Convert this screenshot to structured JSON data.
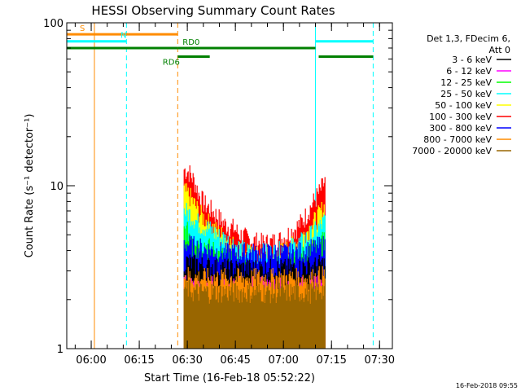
{
  "chart_data": {
    "type": "line",
    "title": "HESSI Observing Summary Count Rates",
    "xlabel": "Start Time (16-Feb-18 05:52:22)",
    "ylabel": "Count Rate (s⁻¹ detector⁻¹)",
    "y_scale": "log",
    "ylim": [
      1,
      100
    ],
    "xlim": [
      "05:52:22",
      "07:34:00"
    ],
    "x_ticks": [
      "06:00",
      "06:15",
      "06:30",
      "06:45",
      "07:00",
      "07:15",
      "07:30"
    ],
    "y_ticks": [
      "1",
      "10",
      "100"
    ],
    "timestamp": "16-Feb-2018 09:55",
    "legend": {
      "placement": "right",
      "header_line1": "Det 1,3, FDecim 6,",
      "header_line2": "Att 0",
      "entries": [
        {
          "label": "3 - 6 keV",
          "color": "#000000"
        },
        {
          "label": "6 - 12 keV",
          "color": "#ff00ff"
        },
        {
          "label": "12 - 25 keV",
          "color": "#00ff00"
        },
        {
          "label": "25 - 50 keV",
          "color": "#00ffff"
        },
        {
          "label": "50 - 100 keV",
          "color": "#ffff00"
        },
        {
          "label": "100 - 300 keV",
          "color": "#ff0000"
        },
        {
          "label": "300 - 800 keV",
          "color": "#0000ff"
        },
        {
          "label": "800 - 7000 keV",
          "color": "#ff8c00"
        },
        {
          "label": "7000 - 20000 keV",
          "color": "#996600"
        }
      ]
    },
    "flag_bars": [
      {
        "label": "S",
        "color": "#ff8c00",
        "start": "05:52:22",
        "end": "06:27",
        "level": 85
      },
      {
        "label": "N",
        "color": "#00ffff",
        "start": "05:52:22",
        "end": "06:11",
        "level": 77
      },
      {
        "label": "",
        "color": "#00ffff",
        "start": "07:10",
        "end": "07:28",
        "level": 77
      },
      {
        "label": "RD0",
        "color": "#008000",
        "start": "06:27",
        "end": "07:10",
        "level": 70
      },
      {
        "label": "",
        "color": "#008000",
        "start": "05:52:22",
        "end": "06:27",
        "level": 70
      },
      {
        "label": "RD6",
        "color": "#008000",
        "start": "06:27",
        "end": "06:37",
        "level": 62
      },
      {
        "label": "",
        "color": "#008000",
        "start": "07:11",
        "end": "07:28",
        "level": 62
      }
    ],
    "vertical_markers": [
      {
        "time": "06:01",
        "color": "#ff8c00",
        "style": "solid"
      },
      {
        "time": "06:11",
        "color": "#00ffff",
        "style": "dashed"
      },
      {
        "time": "06:27",
        "color": "#ff8c00",
        "style": "dashed"
      },
      {
        "time": "07:10",
        "color": "#00ffff",
        "style": "solid"
      },
      {
        "time": "07:28",
        "color": "#00ffff",
        "style": "dashed"
      }
    ],
    "series": [
      {
        "color": "#ff0000",
        "start": "06:29",
        "end": "07:13",
        "values": [
          13,
          12.5,
          11,
          9,
          8,
          7.5,
          7,
          6.5,
          6,
          5.8,
          5.6,
          5.2,
          5,
          4.8,
          4.7,
          4.6,
          4.6,
          4.6,
          4.7,
          4.8,
          5,
          5.3,
          5.6,
          6,
          6.6,
          7.5,
          8.5,
          9.5,
          11
        ]
      },
      {
        "color": "#ffff00",
        "start": "06:29",
        "end": "07:13",
        "values": [
          9.5,
          9,
          8,
          7,
          6.5,
          6,
          5.6,
          5.2,
          5,
          4.6,
          4.4,
          4.2,
          4,
          3.9,
          3.8,
          3.8,
          3.8,
          3.8,
          3.9,
          4,
          4.1,
          4.3,
          4.5,
          4.8,
          5.2,
          5.7,
          6.3,
          7,
          7.8
        ]
      },
      {
        "color": "#00ffff",
        "start": "06:29",
        "end": "07:13",
        "values": [
          7.2,
          7,
          6.5,
          6,
          5.8,
          5.6,
          5.3,
          5,
          4.9,
          4.6,
          4.5,
          4.3,
          4.1,
          4,
          4,
          4,
          4,
          4,
          4,
          4.1,
          4.2,
          4.3,
          4.4,
          4.6,
          4.8,
          5.1,
          5.4,
          5.8,
          6.3
        ]
      },
      {
        "color": "#00ff00",
        "start": "06:29",
        "end": "07:13",
        "values": [
          5.5,
          5.3,
          5,
          4.7,
          4.5,
          4.3,
          4.1,
          3.9,
          3.8,
          3.6,
          3.5,
          3.4,
          3.3,
          3.2,
          3.2,
          3.2,
          3.2,
          3.2,
          3.3,
          3.3,
          3.4,
          3.5,
          3.6,
          3.8,
          4,
          4.2,
          4.4,
          4.6,
          4.9
        ]
      },
      {
        "color": "#0000ff",
        "start": "06:29",
        "end": "07:13",
        "values": [
          4.6,
          4.5,
          4.4,
          4.3,
          4.2,
          4.2,
          4.1,
          4.1,
          4,
          4,
          4,
          4,
          4,
          4,
          4,
          4,
          4,
          4,
          4,
          4,
          4,
          4,
          4,
          4.1,
          4.1,
          4.2,
          4.3,
          4.4,
          4.5
        ]
      },
      {
        "color": "#000000",
        "start": "06:29",
        "end": "07:13",
        "values": [
          3.5,
          3.5,
          3.4,
          3.4,
          3.3,
          3.3,
          3.3,
          3.2,
          3.2,
          3.2,
          3.2,
          3.2,
          3.2,
          3.2,
          3.2,
          3.2,
          3.2,
          3.2,
          3.2,
          3.2,
          3.2,
          3.2,
          3.2,
          3.2,
          3.3,
          3.3,
          3.3,
          3.4,
          3.4
        ]
      },
      {
        "color": "#ff00ff",
        "start": "06:29",
        "end": "07:13",
        "values": [
          2.6,
          2.6,
          2.5,
          2.5,
          2.5,
          2.5,
          2.5,
          2.5,
          2.5,
          2.5,
          2.5,
          2.5,
          2.5,
          2.5,
          2.5,
          2.5,
          2.5,
          2.5,
          2.5,
          2.5,
          2.5,
          2.5,
          2.5,
          2.5,
          2.5,
          2.5,
          2.5,
          2.6,
          2.6
        ]
      },
      {
        "color": "#ff8c00",
        "start": "06:29",
        "end": "07:13",
        "values": [
          2.9,
          2.9,
          2.8,
          2.8,
          2.8,
          2.8,
          2.8,
          2.8,
          2.8,
          2.8,
          2.8,
          2.8,
          2.8,
          2.8,
          2.8,
          2.8,
          2.8,
          2.8,
          2.8,
          2.8,
          2.8,
          2.8,
          2.8,
          2.8,
          2.8,
          2.8,
          2.8,
          2.9,
          2.9
        ]
      },
      {
        "color": "#996600",
        "start": "06:29",
        "end": "07:13",
        "values": [
          2.4,
          2.4,
          2.3,
          2.3,
          2.3,
          2.3,
          2.3,
          2.3,
          2.3,
          2.3,
          2.3,
          2.3,
          2.3,
          2.3,
          2.3,
          2.3,
          2.3,
          2.3,
          2.3,
          2.3,
          2.3,
          2.3,
          2.3,
          2.3,
          2.3,
          2.3,
          2.3,
          2.4,
          2.4
        ]
      }
    ]
  }
}
